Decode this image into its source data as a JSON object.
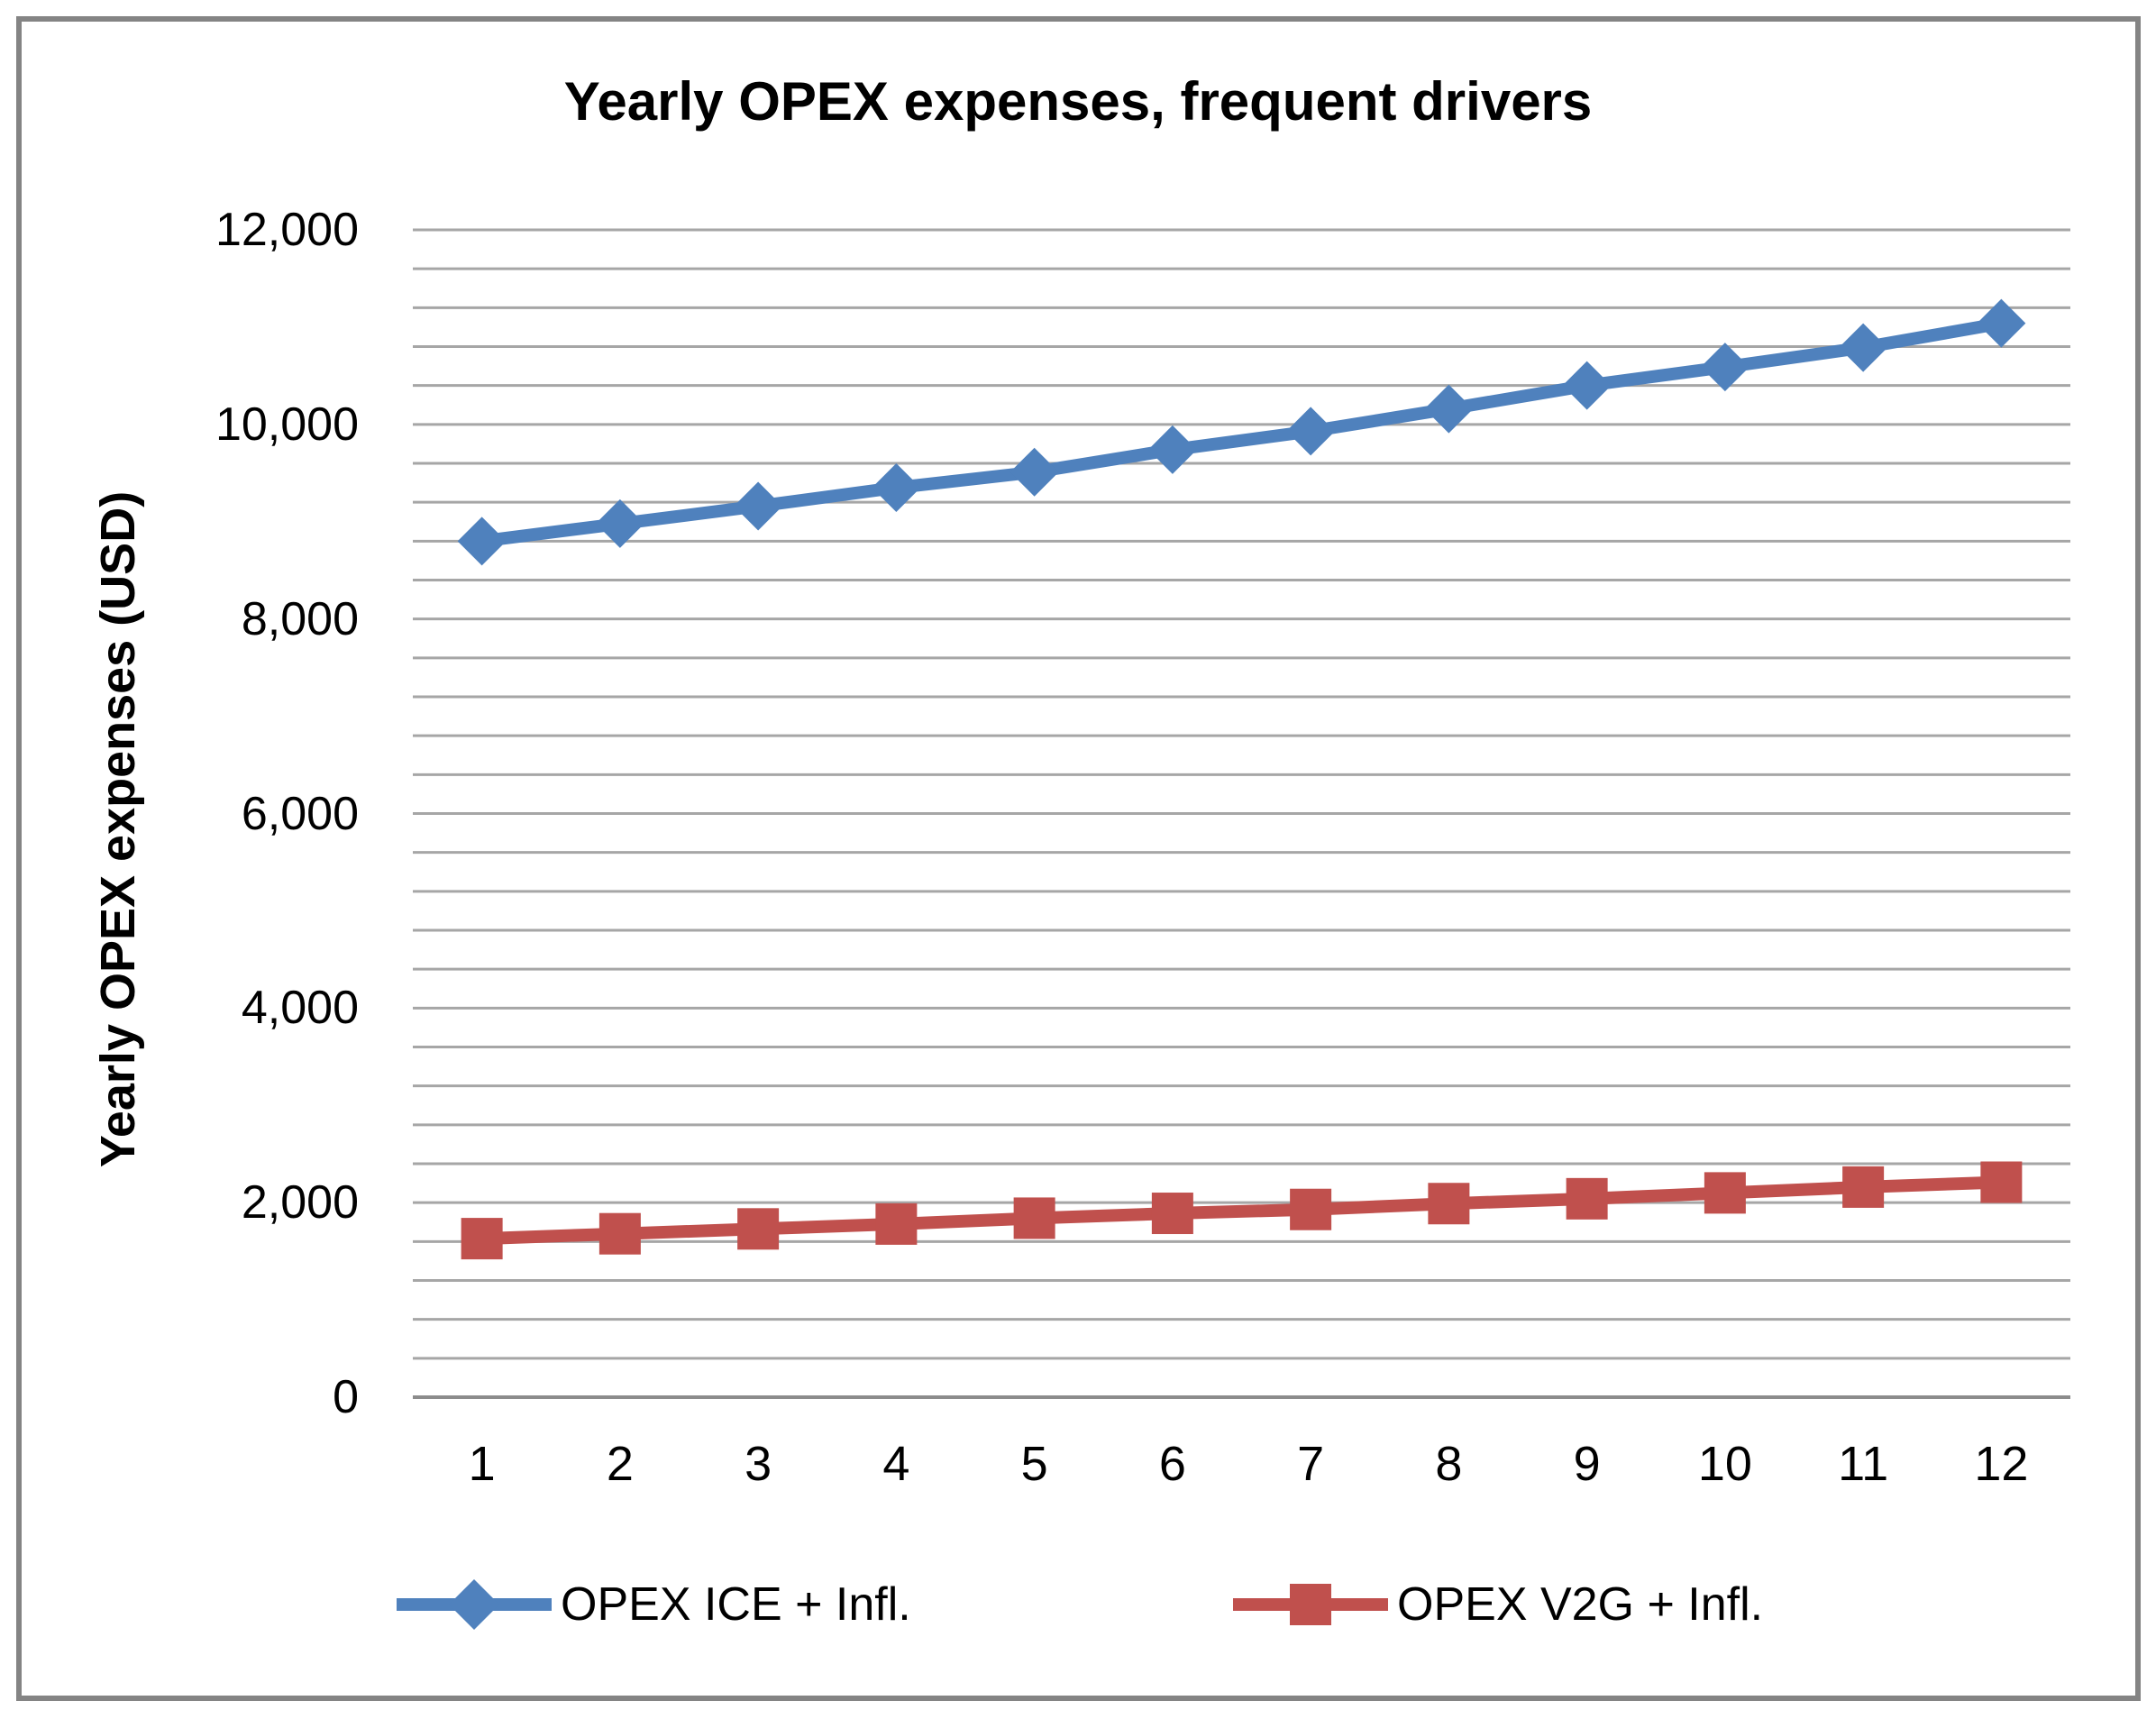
{
  "chart": {
    "title": "Yearly OPEX expenses, frequent drivers",
    "y_axis_title": "Yearly OPEX expenses (USD)"
  },
  "legend": [
    {
      "label": "OPEX ICE + Infl.",
      "marker": "diamond-icon",
      "color": "#4F81BD"
    },
    {
      "label": "OPEX V2G + Infl.",
      "marker": "square-icon",
      "color": "#C0504D"
    }
  ],
  "colors": {
    "series_ice": "#4F81BD",
    "series_v2g": "#C0504D",
    "gridline": "#A6A6A6",
    "axis_line": "#8C8C8C",
    "frame_border": "#848484",
    "text": "#000000",
    "background": "#FFFFFF"
  },
  "chart_data": {
    "type": "line",
    "title": "Yearly OPEX expenses, frequent drivers",
    "xlabel": "",
    "ylabel": "Yearly OPEX expenses (USD)",
    "x": [
      1,
      2,
      3,
      4,
      5,
      6,
      7,
      8,
      9,
      10,
      11,
      12
    ],
    "x_ticks": [
      "1",
      "2",
      "3",
      "4",
      "5",
      "6",
      "7",
      "8",
      "9",
      "10",
      "11",
      "12"
    ],
    "y_ticks": [
      {
        "value": 12000,
        "label": "12,000"
      },
      {
        "value": 10000,
        "label": "10,000"
      },
      {
        "value": 8000,
        "label": "8,000"
      },
      {
        "value": 6000,
        "label": "6,000"
      },
      {
        "value": 4000,
        "label": "4,000"
      },
      {
        "value": 2000,
        "label": "2,000"
      },
      {
        "value": 0,
        "label": "0"
      }
    ],
    "ylim": [
      0,
      12000
    ],
    "y_major_step": 2000,
    "y_minor_step": 400,
    "grid": "horizontal-minor-on",
    "legend_position": "bottom",
    "series": [
      {
        "name": "OPEX ICE + Infl.",
        "color": "#4F81BD",
        "marker": "diamond",
        "values": [
          8800,
          8980,
          9160,
          9350,
          9510,
          9740,
          9930,
          10160,
          10400,
          10590,
          10790,
          11040
        ]
      },
      {
        "name": "OPEX V2G + Infl.",
        "color": "#C0504D",
        "marker": "square",
        "values": [
          1630,
          1680,
          1730,
          1780,
          1840,
          1890,
          1930,
          1990,
          2040,
          2100,
          2160,
          2210
        ]
      }
    ]
  }
}
